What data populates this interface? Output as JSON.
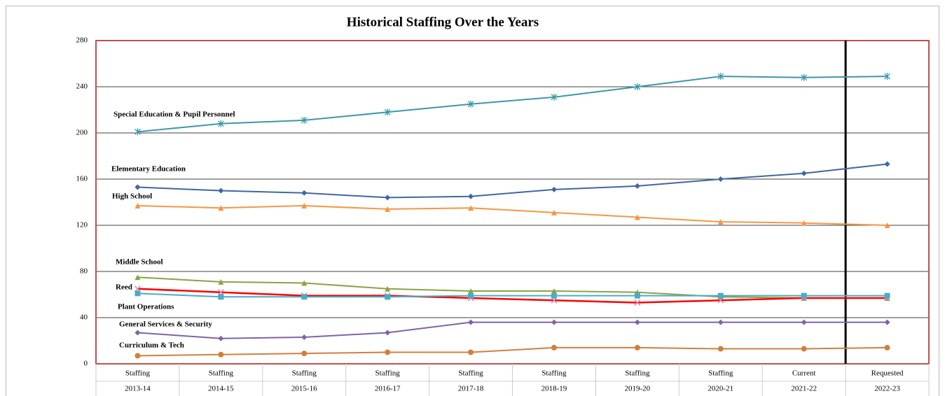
{
  "chart_data": {
    "type": "line",
    "title": "Historical Staffing Over the Years",
    "categories": [
      [
        "Staffing",
        "2013-14"
      ],
      [
        "Staffing",
        "2014-15"
      ],
      [
        "Staffing",
        "2015-16"
      ],
      [
        "Staffing",
        "2016-17"
      ],
      [
        "Staffing",
        "2017-18"
      ],
      [
        "Staffing",
        "2018-19"
      ],
      [
        "Staffing",
        "2019-20"
      ],
      [
        "Staffing",
        "2020-21"
      ],
      [
        "Current",
        "2021-22"
      ],
      [
        "Requested",
        "2022-23"
      ]
    ],
    "ylim": [
      0,
      280
    ],
    "yticks": [
      0,
      40,
      80,
      120,
      160,
      200,
      240,
      280
    ],
    "grid": true,
    "series": [
      {
        "name": "Special Education & Pupil Personnel",
        "color": "#3c98a8",
        "marker": "star",
        "values": [
          201,
          208,
          211,
          218,
          225,
          231,
          240,
          249,
          248,
          249
        ]
      },
      {
        "name": "Elementary Education",
        "color": "#3f68a0",
        "marker": "diamond",
        "values": [
          153,
          150,
          148,
          144,
          145,
          151,
          154,
          160,
          165,
          173
        ]
      },
      {
        "name": "High School",
        "color": "#f79646",
        "marker": "triangle",
        "values": [
          137,
          135,
          137,
          134,
          135,
          131,
          127,
          123,
          122,
          120
        ]
      },
      {
        "name": "Middle School",
        "color": "#8aa346",
        "marker": "triangle",
        "values": [
          75,
          71,
          70,
          65,
          63,
          63,
          62,
          58,
          57,
          57
        ]
      },
      {
        "name": "Reed",
        "color": "#ff0000",
        "marker": "x",
        "values": [
          65,
          62,
          59,
          59,
          57,
          55,
          53,
          55,
          57,
          57
        ]
      },
      {
        "name": "Plant Operations",
        "color": "#4bacc6",
        "marker": "square",
        "values": [
          61,
          58,
          58,
          58,
          59,
          59,
          59,
          59,
          59,
          59
        ]
      },
      {
        "name": "General Services & Security",
        "color": "#8064a2",
        "marker": "diamond",
        "values": [
          27,
          22,
          23,
          27,
          36,
          36,
          36,
          36,
          36,
          36
        ]
      },
      {
        "name": "Curriculum & Tech",
        "color": "#d0803e",
        "marker": "circle",
        "values": [
          7,
          8,
          9,
          10,
          10,
          14,
          14,
          13,
          13,
          14
        ]
      }
    ]
  }
}
